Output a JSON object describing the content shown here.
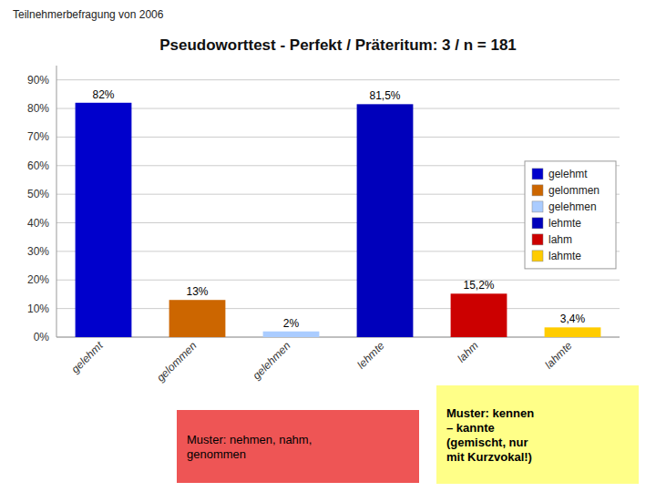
{
  "chart_data": {
    "type": "bar",
    "title": "Pseudoworttest - Perfekt / Präteritum: 3 / n = 181",
    "subtitle": "Teilnehmerbefragung von 2006",
    "categories": [
      "gelehmt",
      "gelommen",
      "gelehmen",
      "lehmte",
      "lahm",
      "lahmte"
    ],
    "values": [
      82.0,
      13.0,
      2.0,
      81.5,
      15.2,
      3.4
    ],
    "value_labels": [
      "82%",
      "13%",
      "2%",
      "81,5%",
      "15,2%",
      "3,4%"
    ],
    "colors": [
      "#0000cc",
      "#cc6600",
      "#aaccff",
      "#0000bb",
      "#cc0000",
      "#ffcc00"
    ],
    "ylim": [
      0,
      95
    ],
    "yticks": [
      {
        "value": 0,
        "label": "0%"
      },
      {
        "value": 10,
        "label": "10%"
      },
      {
        "value": 20,
        "label": "20%"
      },
      {
        "value": 30,
        "label": "30%"
      },
      {
        "value": 40,
        "label": "40%"
      },
      {
        "value": 50,
        "label": "50%"
      },
      {
        "value": 60,
        "label": "60%"
      },
      {
        "value": 70,
        "label": "70%"
      },
      {
        "value": 80,
        "label": "80%"
      },
      {
        "value": 90,
        "label": "90%"
      }
    ],
    "grid": true,
    "legend": "right",
    "data_labels": true,
    "annotations": [
      {
        "text": "Muster: nehmen, nahm,\ngenommen",
        "color": "#ee5555"
      },
      {
        "text": "Muster: kennen\n– kannte\n(gemischt, nur\nmit Kurzvokal!)",
        "color": "#ffff88"
      }
    ]
  }
}
